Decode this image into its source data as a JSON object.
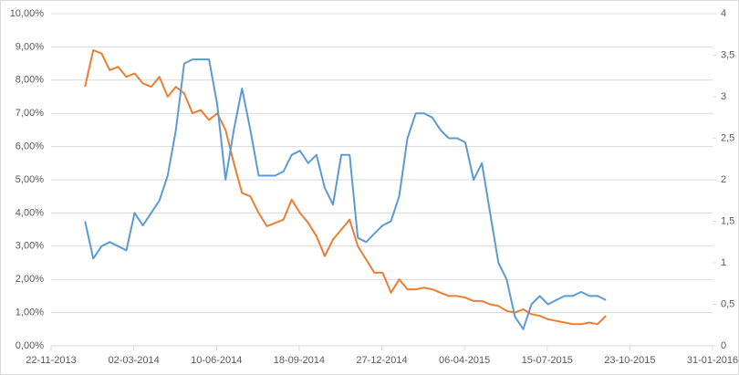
{
  "chart_data": {
    "type": "line",
    "x": [
      "02-01-2014",
      "12-01-2014",
      "22-01-2014",
      "01-02-2014",
      "11-02-2014",
      "21-02-2014",
      "03-03-2014",
      "13-03-2014",
      "23-03-2014",
      "02-04-2014",
      "12-04-2014",
      "22-04-2014",
      "02-05-2014",
      "12-05-2014",
      "22-05-2014",
      "01-06-2014",
      "11-06-2014",
      "21-06-2014",
      "01-07-2014",
      "11-07-2014",
      "21-07-2014",
      "31-07-2014",
      "10-08-2014",
      "20-08-2014",
      "30-08-2014",
      "09-09-2014",
      "19-09-2014",
      "29-09-2014",
      "09-10-2014",
      "19-10-2014",
      "29-10-2014",
      "08-11-2014",
      "18-11-2014",
      "28-11-2014",
      "08-12-2014",
      "18-12-2014",
      "28-12-2014",
      "07-01-2015",
      "17-01-2015",
      "27-01-2015",
      "06-02-2015",
      "16-02-2015",
      "26-02-2015",
      "08-03-2015",
      "18-03-2015",
      "28-03-2015",
      "07-04-2015",
      "17-04-2015",
      "27-04-2015",
      "07-05-2015",
      "17-05-2015",
      "27-05-2015",
      "06-06-2015",
      "16-06-2015",
      "26-06-2015",
      "06-07-2015",
      "16-07-2015",
      "26-07-2015",
      "05-08-2015",
      "15-08-2015",
      "25-08-2015",
      "04-09-2015",
      "14-09-2015",
      "24-09-2015"
    ],
    "series": [
      {
        "color": "#ed7d31",
        "axis": "y",
        "values": [
          7.8,
          8.9,
          8.8,
          8.3,
          8.4,
          8.1,
          8.2,
          7.9,
          7.8,
          8.1,
          7.5,
          7.8,
          7.6,
          7.0,
          7.1,
          6.8,
          7.0,
          6.5,
          5.5,
          4.6,
          4.5,
          4.0,
          3.6,
          3.7,
          3.8,
          4.4,
          4.0,
          3.7,
          3.3,
          2.7,
          3.2,
          3.5,
          3.8,
          3.0,
          2.6,
          2.2,
          2.2,
          1.6,
          2.0,
          1.7,
          1.7,
          1.75,
          1.7,
          1.6,
          1.5,
          1.5,
          1.45,
          1.35,
          1.35,
          1.25,
          1.2,
          1.05,
          1.0,
          1.1,
          0.95,
          0.9,
          0.8,
          0.75,
          0.7,
          0.65,
          0.65,
          0.7,
          0.65,
          0.9
        ]
      },
      {
        "color": "#5b9bd5",
        "axis": "y2",
        "values": [
          1.5,
          1.05,
          1.2,
          1.25,
          1.2,
          1.15,
          1.6,
          1.45,
          1.6,
          1.75,
          2.05,
          2.6,
          3.4,
          3.45,
          3.45,
          3.45,
          2.9,
          2.0,
          2.6,
          3.1,
          2.6,
          2.05,
          2.05,
          2.05,
          2.1,
          2.3,
          2.35,
          2.2,
          2.3,
          1.9,
          1.7,
          2.3,
          2.3,
          1.3,
          1.25,
          1.35,
          1.45,
          1.5,
          1.8,
          2.5,
          2.8,
          2.8,
          2.75,
          2.6,
          2.5,
          2.5,
          2.45,
          2.0,
          2.2,
          1.6,
          1.0,
          0.8,
          0.35,
          0.2,
          0.5,
          0.6,
          0.5,
          0.55,
          0.6,
          0.6,
          0.65,
          0.6,
          0.6,
          0.55
        ]
      }
    ],
    "xlim": [
      "22-11-2013",
      "31-01-2016"
    ],
    "xticks": [
      "22-11-2013",
      "02-03-2014",
      "10-06-2014",
      "18-09-2014",
      "27-12-2014",
      "06-04-2015",
      "15-07-2015",
      "23-10-2015",
      "31-01-2016"
    ],
    "ylim": [
      0,
      10
    ],
    "yticks": [
      {
        "value": 0,
        "label": "0,00%"
      },
      {
        "value": 1,
        "label": "1,00%"
      },
      {
        "value": 2,
        "label": "2,00%"
      },
      {
        "value": 3,
        "label": "3,00%"
      },
      {
        "value": 4,
        "label": "4,00%"
      },
      {
        "value": 5,
        "label": "5,00%"
      },
      {
        "value": 6,
        "label": "6,00%"
      },
      {
        "value": 7,
        "label": "7,00%"
      },
      {
        "value": 8,
        "label": "8,00%"
      },
      {
        "value": 9,
        "label": "9,00%"
      },
      {
        "value": 10,
        "label": "10,00%"
      }
    ],
    "y2lim": [
      0,
      4
    ],
    "y2ticks": [
      0,
      {
        "value": 0.5,
        "label": "0,5"
      },
      1,
      {
        "value": 1.5,
        "label": "1,5"
      },
      2,
      {
        "value": 2.5,
        "label": "2,5"
      },
      3,
      {
        "value": 3.5,
        "label": "3,5"
      },
      4
    ],
    "grid": true
  }
}
